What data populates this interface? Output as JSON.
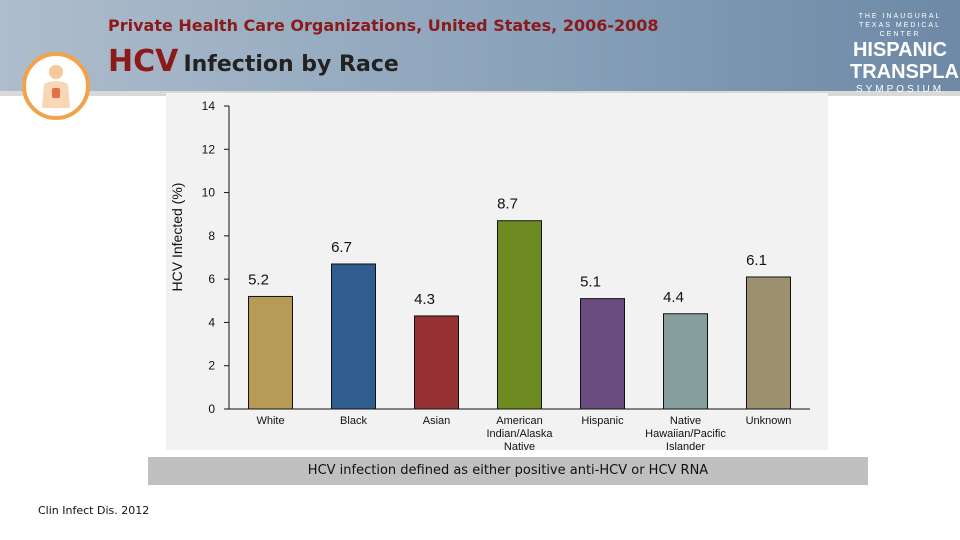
{
  "header": {
    "subtitle": "Private Health Care Organizations, United States, 2006-2008",
    "title_highlight": "HCV",
    "title_rest": "Infection by Race"
  },
  "brand": {
    "line1": "THE INAUGURAL",
    "line2": "TEXAS MEDICAL CENTER",
    "line3": "HISPANIC",
    "line4": "TRANSPLANT",
    "line5": "SYMPOSIUM"
  },
  "chart_data": {
    "type": "bar",
    "ylabel": "HCV Infected (%)",
    "ylim": [
      0,
      14
    ],
    "yticks": [
      0,
      2,
      4,
      6,
      8,
      10,
      12,
      14
    ],
    "categories": [
      "White",
      "Black",
      "Asian",
      "American Indian/Alaska Native",
      "Hispanic",
      "Native Hawaiian/Pacific Islander",
      "Unknown"
    ],
    "category_lines": [
      [
        "White"
      ],
      [
        "Black"
      ],
      [
        "Asian"
      ],
      [
        "American",
        "Indian/Alaska",
        "Native"
      ],
      [
        "Hispanic"
      ],
      [
        "Native",
        "Hawaiian/Pacific",
        "Islander"
      ],
      [
        "Unknown"
      ]
    ],
    "values": [
      5.2,
      6.7,
      4.3,
      8.7,
      5.1,
      4.4,
      6.1
    ],
    "value_labels": [
      "5.2",
      "6.7",
      "4.3",
      "8.7",
      "5.1",
      "4.4",
      "6.1"
    ],
    "colors": [
      "#b79a55",
      "#2f5d8f",
      "#973234",
      "#6e8b22",
      "#6a4b80",
      "#879e9e",
      "#9c916e"
    ]
  },
  "footnote": "HCV infection defined as either positive anti-HCV  or HCV RNA",
  "citation": "Clin Infect Dis. 2012"
}
